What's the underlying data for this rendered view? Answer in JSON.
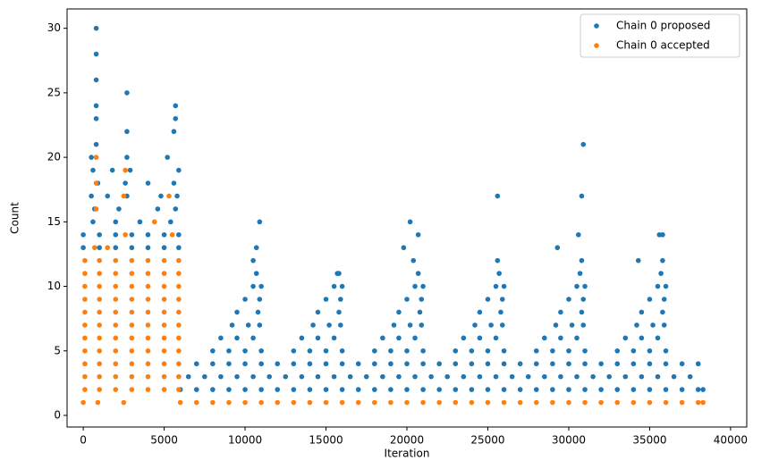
{
  "chart_data": {
    "type": "scatter",
    "xlabel": "Iteration",
    "ylabel": "Count",
    "xlim": [
      -1000,
      41000
    ],
    "ylim": [
      -0.9,
      31.5
    ],
    "xticks": [
      0,
      5000,
      10000,
      15000,
      20000,
      25000,
      30000,
      35000,
      40000
    ],
    "yticks": [
      0,
      5,
      10,
      15,
      20,
      25,
      30
    ],
    "legend": "upper right",
    "series": [
      {
        "name": "Chain 0 proposed",
        "color": "#1f77b4",
        "x": [
          0,
          1000,
          2000,
          3000,
          4000,
          5000,
          5900,
          0,
          1000,
          2000,
          3000,
          4000,
          5000,
          5900,
          600,
          2000,
          3500,
          5400,
          700,
          2200,
          4600,
          5700,
          500,
          1500,
          2700,
          4800,
          5800,
          900,
          2600,
          4000,
          5600,
          600,
          1800,
          2900,
          5900,
          500,
          2700,
          5200,
          800,
          2700,
          5600,
          800,
          5700,
          800,
          5700,
          2700,
          800,
          800,
          800,
          6000,
          7000,
          8000,
          9000,
          10000,
          11000,
          12000,
          13000,
          14000,
          15000,
          16000,
          17000,
          18000,
          19000,
          20000,
          21000,
          22000,
          23000,
          24000,
          25000,
          26000,
          27000,
          28000,
          29000,
          30000,
          31000,
          32000,
          33000,
          34000,
          35000,
          36000,
          37000,
          38000,
          38300,
          6500,
          7500,
          8500,
          9500,
          10500,
          11500,
          12500,
          13500,
          14500,
          15500,
          16500,
          17500,
          18500,
          19500,
          20500,
          21500,
          22500,
          23500,
          24500,
          25500,
          26500,
          27500,
          28500,
          29500,
          30500,
          31500,
          32500,
          33500,
          34500,
          35500,
          36500,
          37500,
          7000,
          8000,
          9000,
          10000,
          11000,
          12000,
          13000,
          14000,
          15000,
          16000,
          17000,
          18000,
          19000,
          20000,
          21000,
          22000,
          23000,
          24000,
          25000,
          26000,
          27000,
          28000,
          29000,
          30000,
          31000,
          32000,
          33000,
          34000,
          35000,
          36000,
          37000,
          38000,
          8000,
          9000,
          10000,
          11000,
          13000,
          14000,
          15000,
          16000,
          18000,
          19000,
          20000,
          21000,
          23000,
          24000,
          25000,
          26000,
          28000,
          29000,
          30000,
          31000,
          33000,
          34000,
          35000,
          36000,
          8500,
          9500,
          10500,
          13500,
          14500,
          15500,
          18500,
          19500,
          20500,
          23500,
          24500,
          25500,
          28500,
          29500,
          30500,
          33500,
          34500,
          35500,
          9200,
          10200,
          10900,
          14200,
          15200,
          15900,
          19200,
          20200,
          20900,
          24200,
          25200,
          25900,
          29200,
          30200,
          30900,
          34200,
          35200,
          35900,
          9500,
          10800,
          14500,
          15800,
          19500,
          20800,
          24500,
          25800,
          29500,
          30800,
          34500,
          35800,
          10000,
          10900,
          15000,
          15900,
          20000,
          20900,
          25000,
          25900,
          30000,
          30900,
          35000,
          35900,
          10500,
          11000,
          15500,
          16000,
          20500,
          21000,
          25500,
          26000,
          30500,
          31000,
          35500,
          36000,
          10700,
          15700,
          20700,
          25700,
          30700,
          35700,
          10500,
          20400,
          25600,
          30800,
          35800,
          10900,
          15800,
          20200,
          25600,
          30900,
          30800,
          30600,
          35800,
          35600,
          20700,
          10700,
          29300,
          19800,
          34300
        ],
        "values": [
          13,
          13,
          13,
          13,
          13,
          13,
          13,
          14,
          14,
          14,
          14,
          14,
          14,
          14,
          15,
          15,
          15,
          15,
          16,
          16,
          16,
          16,
          17,
          17,
          17,
          17,
          17,
          18,
          18,
          18,
          18,
          19,
          19,
          19,
          19,
          20,
          20,
          20,
          21,
          22,
          22,
          23,
          23,
          24,
          24,
          25,
          26,
          28,
          30,
          2,
          2,
          2,
          2,
          2,
          2,
          2,
          2,
          2,
          2,
          2,
          2,
          2,
          2,
          2,
          2,
          2,
          2,
          2,
          2,
          2,
          2,
          2,
          2,
          2,
          2,
          2,
          2,
          2,
          2,
          2,
          2,
          2,
          2,
          3,
          3,
          3,
          3,
          3,
          3,
          3,
          3,
          3,
          3,
          3,
          3,
          3,
          3,
          3,
          3,
          3,
          3,
          3,
          3,
          3,
          3,
          3,
          3,
          3,
          3,
          3,
          3,
          3,
          3,
          3,
          3,
          4,
          4,
          4,
          4,
          4,
          4,
          4,
          4,
          4,
          4,
          4,
          4,
          4,
          4,
          4,
          4,
          4,
          4,
          4,
          4,
          4,
          4,
          4,
          4,
          4,
          4,
          4,
          4,
          4,
          4,
          4,
          4,
          5,
          5,
          5,
          5,
          5,
          5,
          5,
          5,
          5,
          5,
          5,
          5,
          5,
          5,
          5,
          5,
          5,
          5,
          5,
          5,
          5,
          5,
          5,
          5,
          6,
          6,
          6,
          6,
          6,
          6,
          6,
          6,
          6,
          6,
          6,
          6,
          6,
          6,
          6,
          6,
          6,
          6,
          7,
          7,
          7,
          7,
          7,
          7,
          7,
          7,
          7,
          7,
          7,
          7,
          7,
          7,
          7,
          7,
          7,
          7,
          8,
          8,
          8,
          8,
          8,
          8,
          8,
          8,
          8,
          8,
          8,
          8,
          9,
          9,
          9,
          9,
          9,
          9,
          9,
          9,
          9,
          9,
          9,
          9,
          10,
          10,
          10,
          10,
          10,
          10,
          10,
          10,
          10,
          10,
          10,
          10,
          11,
          11,
          11,
          11,
          11,
          11,
          12,
          12,
          12,
          12,
          12,
          15,
          11,
          15,
          17,
          21,
          17,
          14,
          14,
          14,
          14,
          13,
          13,
          13,
          12
        ]
      },
      {
        "name": "Chain 0 accepted",
        "color": "#ff7f0e",
        "x": [
          0,
          900,
          2500,
          6000,
          7000,
          8000,
          9000,
          10000,
          11000,
          12000,
          13000,
          14000,
          15000,
          16000,
          17000,
          18000,
          19000,
          20000,
          21000,
          22000,
          23000,
          24000,
          25000,
          26000,
          27000,
          28000,
          29000,
          30000,
          31000,
          32000,
          33000,
          34000,
          35000,
          36000,
          37000,
          38000,
          38300,
          100,
          1000,
          2000,
          3000,
          4000,
          5000,
          5900,
          100,
          1000,
          2000,
          3000,
          4000,
          5000,
          5900,
          100,
          1000,
          2000,
          3000,
          4000,
          5000,
          5900,
          100,
          1000,
          2000,
          3000,
          4000,
          5000,
          5900,
          100,
          1000,
          2000,
          3000,
          4000,
          5000,
          5900,
          100,
          1000,
          2000,
          3000,
          4000,
          5000,
          5900,
          100,
          1000,
          2000,
          3000,
          4000,
          5000,
          5900,
          100,
          1000,
          2000,
          3000,
          4000,
          5000,
          5900,
          100,
          1000,
          2000,
          3000,
          4000,
          5000,
          5900,
          100,
          1000,
          2000,
          3000,
          4000,
          5000,
          5900,
          100,
          1000,
          2000,
          3000,
          4000,
          5000,
          5900,
          700,
          2600,
          5500,
          800,
          800,
          800,
          2600,
          5300,
          2500,
          4400,
          1500
        ],
        "values": [
          1,
          1,
          1,
          1,
          1,
          1,
          1,
          1,
          1,
          1,
          1,
          1,
          1,
          1,
          1,
          1,
          1,
          1,
          1,
          1,
          1,
          1,
          1,
          1,
          1,
          1,
          1,
          1,
          1,
          1,
          1,
          1,
          1,
          1,
          1,
          1,
          1,
          2,
          2,
          2,
          2,
          2,
          2,
          2,
          3,
          3,
          3,
          3,
          3,
          3,
          3,
          4,
          4,
          4,
          4,
          4,
          4,
          4,
          5,
          5,
          5,
          5,
          5,
          5,
          5,
          6,
          6,
          6,
          6,
          6,
          6,
          6,
          7,
          7,
          7,
          7,
          7,
          7,
          7,
          8,
          8,
          8,
          8,
          8,
          8,
          8,
          9,
          9,
          9,
          9,
          9,
          9,
          9,
          10,
          10,
          10,
          10,
          10,
          10,
          10,
          11,
          11,
          11,
          11,
          11,
          11,
          11,
          12,
          12,
          12,
          12,
          12,
          12,
          12,
          13,
          14,
          14,
          16,
          18,
          20,
          19,
          17,
          17,
          15,
          13
        ]
      }
    ]
  }
}
